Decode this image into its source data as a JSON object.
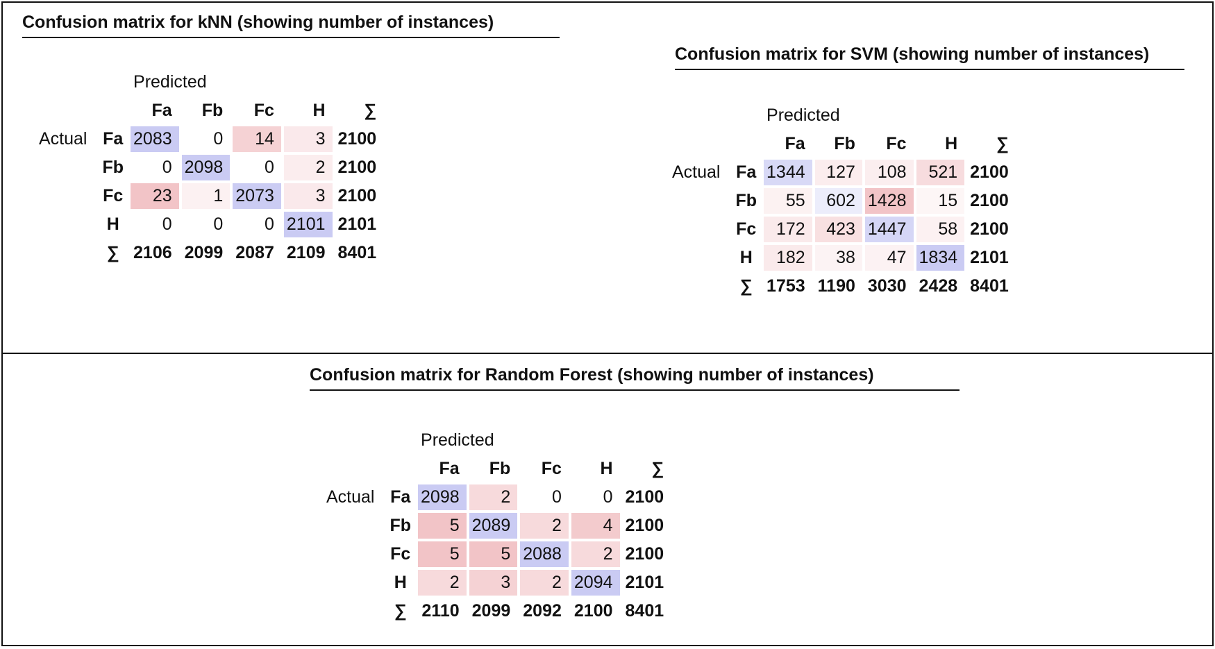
{
  "knn": {
    "title": "Confusion matrix for kNN (showing number of instances)",
    "predicted_label": "Predicted",
    "actual_label": "Actual",
    "sum_symbol": "∑",
    "classes": [
      "Fa",
      "Fb",
      "Fc",
      "H"
    ],
    "matrix": [
      [
        2083,
        0,
        14,
        3
      ],
      [
        0,
        2098,
        0,
        2
      ],
      [
        23,
        1,
        2073,
        3
      ],
      [
        0,
        0,
        0,
        2101
      ]
    ],
    "row_totals": [
      2100,
      2100,
      2100,
      2101
    ],
    "col_totals": [
      2106,
      2099,
      2087,
      2109
    ],
    "grand_total": 8401
  },
  "svm": {
    "title": "Confusion matrix for SVM (showing number of instances)",
    "predicted_label": "Predicted",
    "actual_label": "Actual",
    "sum_symbol": "∑",
    "classes": [
      "Fa",
      "Fb",
      "Fc",
      "H"
    ],
    "matrix": [
      [
        1344,
        127,
        108,
        521
      ],
      [
        55,
        602,
        1428,
        15
      ],
      [
        172,
        423,
        1447,
        58
      ],
      [
        182,
        38,
        47,
        1834
      ]
    ],
    "row_totals": [
      2100,
      2100,
      2100,
      2101
    ],
    "col_totals": [
      1753,
      1190,
      3030,
      2428
    ],
    "grand_total": 8401
  },
  "rf": {
    "title": "Confusion matrix for Random Forest (showing number of instances)",
    "predicted_label": "Predicted",
    "actual_label": "Actual",
    "sum_symbol": "∑",
    "classes": [
      "Fa",
      "Fb",
      "Fc",
      "H"
    ],
    "matrix": [
      [
        2098,
        2,
        0,
        0
      ],
      [
        5,
        2089,
        2,
        4
      ],
      [
        5,
        5,
        2088,
        2
      ],
      [
        2,
        3,
        2,
        2094
      ]
    ],
    "row_totals": [
      2100,
      2100,
      2100,
      2101
    ],
    "col_totals": [
      2110,
      2099,
      2092,
      2100
    ],
    "grand_total": 8401
  },
  "colors": {
    "diagonal": "#cacbf3",
    "off_diagonal_max": "#f2c4c7",
    "border": "#111111"
  }
}
